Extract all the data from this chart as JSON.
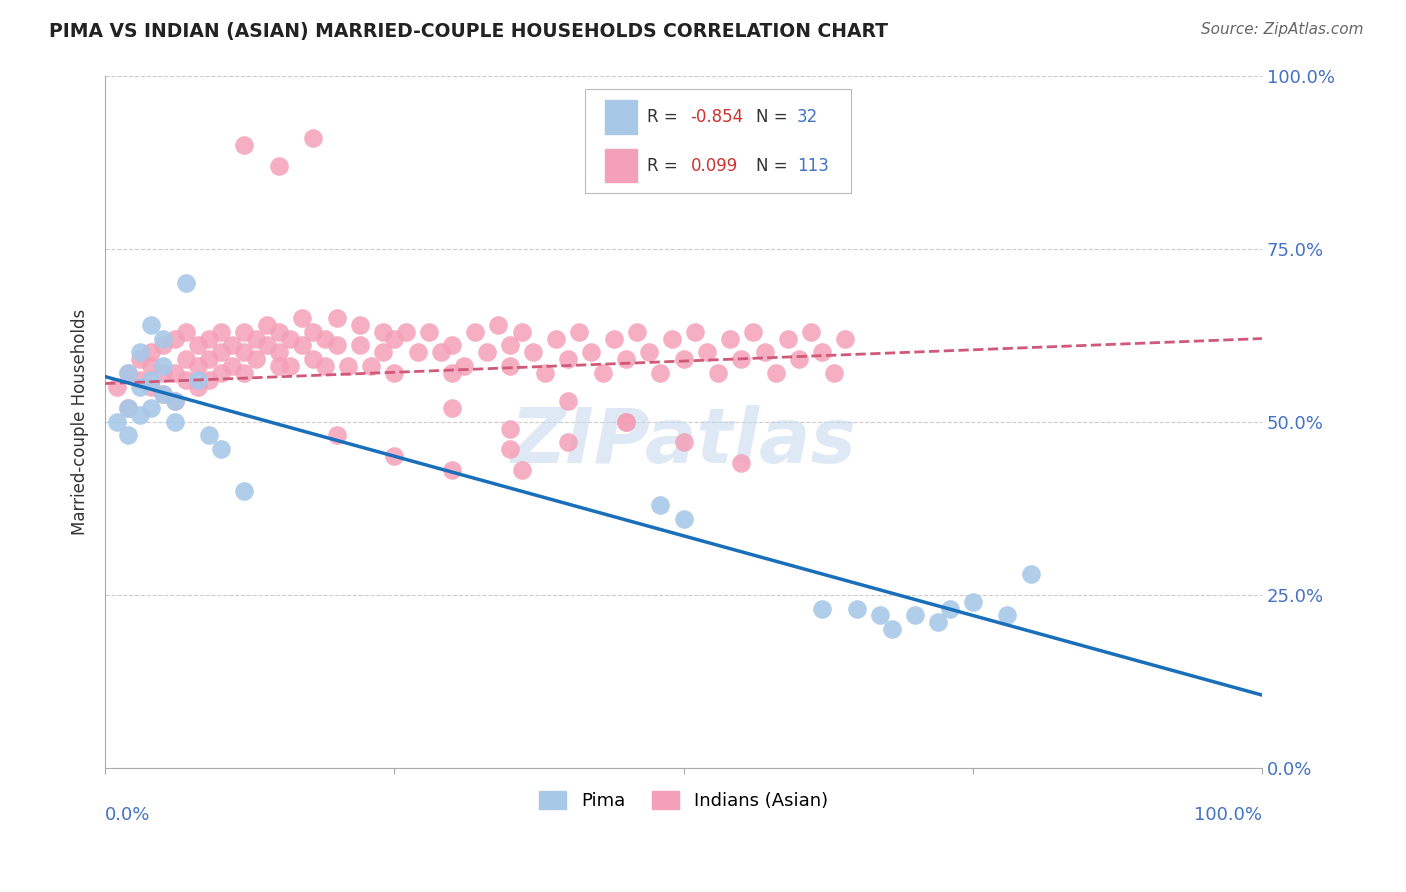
{
  "title": "PIMA VS INDIAN (ASIAN) MARRIED-COUPLE HOUSEHOLDS CORRELATION CHART",
  "source": "Source: ZipAtlas.com",
  "ylabel": "Married-couple Households",
  "ytick_labels": [
    "0.0%",
    "25.0%",
    "50.0%",
    "75.0%",
    "100.0%"
  ],
  "ytick_values": [
    0.0,
    0.25,
    0.5,
    0.75,
    1.0
  ],
  "xlim": [
    0.0,
    1.0
  ],
  "ylim": [
    0.0,
    1.0
  ],
  "legend_pima_label": "Pima",
  "legend_indian_label": "Indians (Asian)",
  "legend_r_pima": "-0.854",
  "legend_n_pima": "32",
  "legend_r_indian": "0.099",
  "legend_n_indian": "113",
  "pima_color": "#a8c8e8",
  "pima_line_color": "#1a6fba",
  "indian_color": "#f4a0b8",
  "indian_line_color": "#d05878",
  "watermark": "ZIPatlas",
  "pima_x": [
    0.01,
    0.02,
    0.02,
    0.02,
    0.03,
    0.03,
    0.03,
    0.04,
    0.04,
    0.04,
    0.05,
    0.05,
    0.05,
    0.06,
    0.06,
    0.07,
    0.08,
    0.09,
    0.1,
    0.12,
    0.48,
    0.5,
    0.62,
    0.65,
    0.67,
    0.68,
    0.7,
    0.72,
    0.73,
    0.75,
    0.78,
    0.8
  ],
  "pima_y": [
    0.5,
    0.52,
    0.48,
    0.57,
    0.55,
    0.51,
    0.6,
    0.56,
    0.52,
    0.64,
    0.54,
    0.58,
    0.62,
    0.5,
    0.53,
    0.7,
    0.56,
    0.48,
    0.46,
    0.4,
    0.38,
    0.36,
    0.23,
    0.23,
    0.22,
    0.2,
    0.22,
    0.21,
    0.23,
    0.24,
    0.22,
    0.28
  ],
  "indian_x": [
    0.01,
    0.02,
    0.02,
    0.03,
    0.03,
    0.04,
    0.04,
    0.04,
    0.05,
    0.05,
    0.05,
    0.06,
    0.06,
    0.06,
    0.07,
    0.07,
    0.07,
    0.08,
    0.08,
    0.08,
    0.09,
    0.09,
    0.09,
    0.1,
    0.1,
    0.1,
    0.11,
    0.11,
    0.12,
    0.12,
    0.12,
    0.13,
    0.13,
    0.14,
    0.14,
    0.15,
    0.15,
    0.15,
    0.16,
    0.16,
    0.17,
    0.17,
    0.18,
    0.18,
    0.19,
    0.19,
    0.2,
    0.2,
    0.21,
    0.22,
    0.22,
    0.23,
    0.24,
    0.24,
    0.25,
    0.25,
    0.26,
    0.27,
    0.28,
    0.29,
    0.3,
    0.3,
    0.31,
    0.32,
    0.33,
    0.34,
    0.35,
    0.35,
    0.36,
    0.37,
    0.38,
    0.39,
    0.4,
    0.41,
    0.42,
    0.43,
    0.44,
    0.45,
    0.46,
    0.47,
    0.48,
    0.49,
    0.5,
    0.51,
    0.52,
    0.53,
    0.54,
    0.55,
    0.56,
    0.57,
    0.58,
    0.59,
    0.6,
    0.61,
    0.62,
    0.63,
    0.64,
    0.35,
    0.36,
    0.2,
    0.25,
    0.3,
    0.4,
    0.45,
    0.5,
    0.55,
    0.3,
    0.35,
    0.4,
    0.45,
    0.12,
    0.15,
    0.18
  ],
  "indian_y": [
    0.55,
    0.57,
    0.52,
    0.59,
    0.56,
    0.6,
    0.55,
    0.58,
    0.57,
    0.61,
    0.54,
    0.62,
    0.57,
    0.53,
    0.63,
    0.59,
    0.56,
    0.61,
    0.58,
    0.55,
    0.62,
    0.59,
    0.56,
    0.63,
    0.6,
    0.57,
    0.61,
    0.58,
    0.63,
    0.6,
    0.57,
    0.62,
    0.59,
    0.64,
    0.61,
    0.58,
    0.63,
    0.6,
    0.62,
    0.58,
    0.65,
    0.61,
    0.63,
    0.59,
    0.62,
    0.58,
    0.65,
    0.61,
    0.58,
    0.64,
    0.61,
    0.58,
    0.63,
    0.6,
    0.57,
    0.62,
    0.63,
    0.6,
    0.63,
    0.6,
    0.57,
    0.61,
    0.58,
    0.63,
    0.6,
    0.64,
    0.61,
    0.58,
    0.63,
    0.6,
    0.57,
    0.62,
    0.59,
    0.63,
    0.6,
    0.57,
    0.62,
    0.59,
    0.63,
    0.6,
    0.57,
    0.62,
    0.59,
    0.63,
    0.6,
    0.57,
    0.62,
    0.59,
    0.63,
    0.6,
    0.57,
    0.62,
    0.59,
    0.63,
    0.6,
    0.57,
    0.62,
    0.46,
    0.43,
    0.48,
    0.45,
    0.43,
    0.47,
    0.5,
    0.47,
    0.44,
    0.52,
    0.49,
    0.53,
    0.5,
    0.9,
    0.87,
    0.91
  ]
}
